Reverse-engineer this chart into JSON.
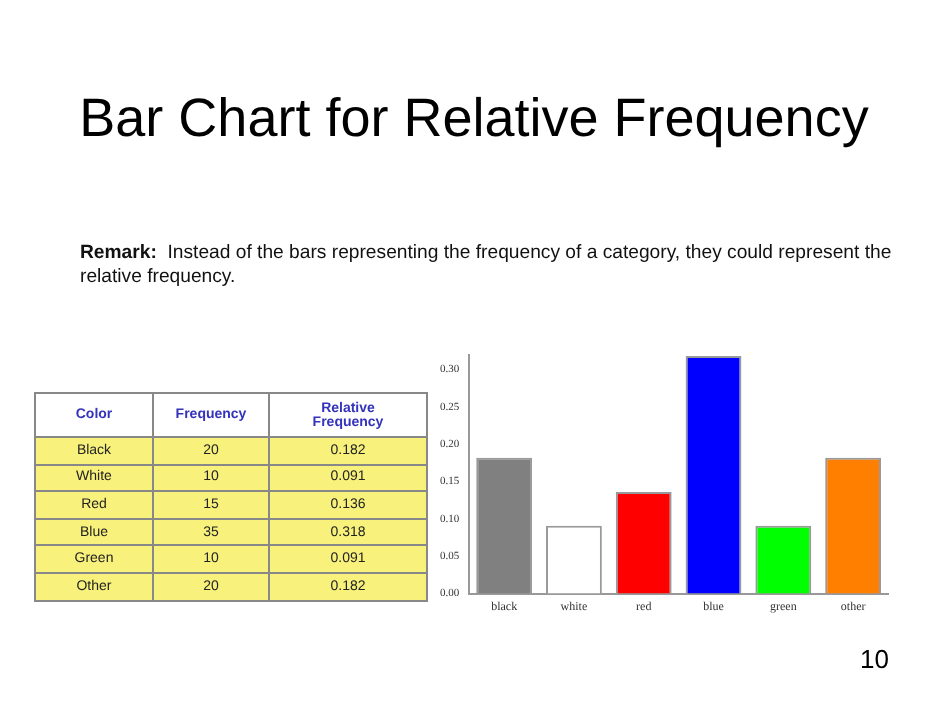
{
  "chart_data": [
    {
      "type": "other",
      "title": "Bar Chart for Relative Frequency",
      "annotations": [
        "Remark:",
        "Instead of the bars representing the frequency of a category, they could represent the relative frequency."
      ],
      "xlabel": "Color",
      "categories": [
        "Black",
        "White",
        "Red",
        "Blue",
        "Green",
        "Other"
      ],
      "series": [
        {
          "name": "Frequency",
          "values": [
            20,
            10,
            15,
            35,
            10,
            20
          ]
        },
        {
          "name": "Relative Frequency",
          "values": [
            0.182,
            0.091,
            0.136,
            0.318,
            0.091,
            0.182
          ]
        }
      ],
      "data_labels": true
    },
    {
      "type": "bar",
      "categories": [
        "black",
        "white",
        "red",
        "blue",
        "green",
        "other"
      ],
      "values": [
        0.182,
        0.091,
        0.136,
        0.318,
        0.091,
        0.182
      ],
      "colors": [
        "#808080",
        "#ffffff",
        "#ff0000",
        "#0000ff",
        "#00ff00",
        "#ff8000"
      ],
      "ylim": [
        0,
        0.32
      ],
      "yticks": [
        {
          "value": 0,
          "label": "0.00"
        },
        {
          "value": 0.05,
          "label": "0.05"
        },
        {
          "value": 0.1,
          "label": "0.10"
        },
        {
          "value": 0.15,
          "label": "0.15"
        },
        {
          "value": 0.2,
          "label": "0.20"
        },
        {
          "value": 0.25,
          "label": "0.25"
        },
        {
          "value": 0.3,
          "label": "0.30"
        }
      ],
      "grid": false,
      "annotations": [
        "10"
      ]
    }
  ]
}
